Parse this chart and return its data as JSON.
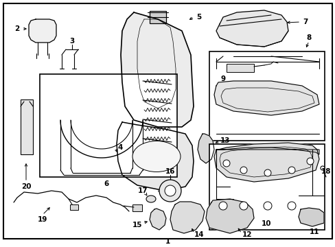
{
  "fig_width": 4.89,
  "fig_height": 3.6,
  "dpi": 100,
  "bg": "#ffffff",
  "border_lw": 1.5,
  "label_fontsize": 7.5,
  "label_fontsize_small": 6.5
}
